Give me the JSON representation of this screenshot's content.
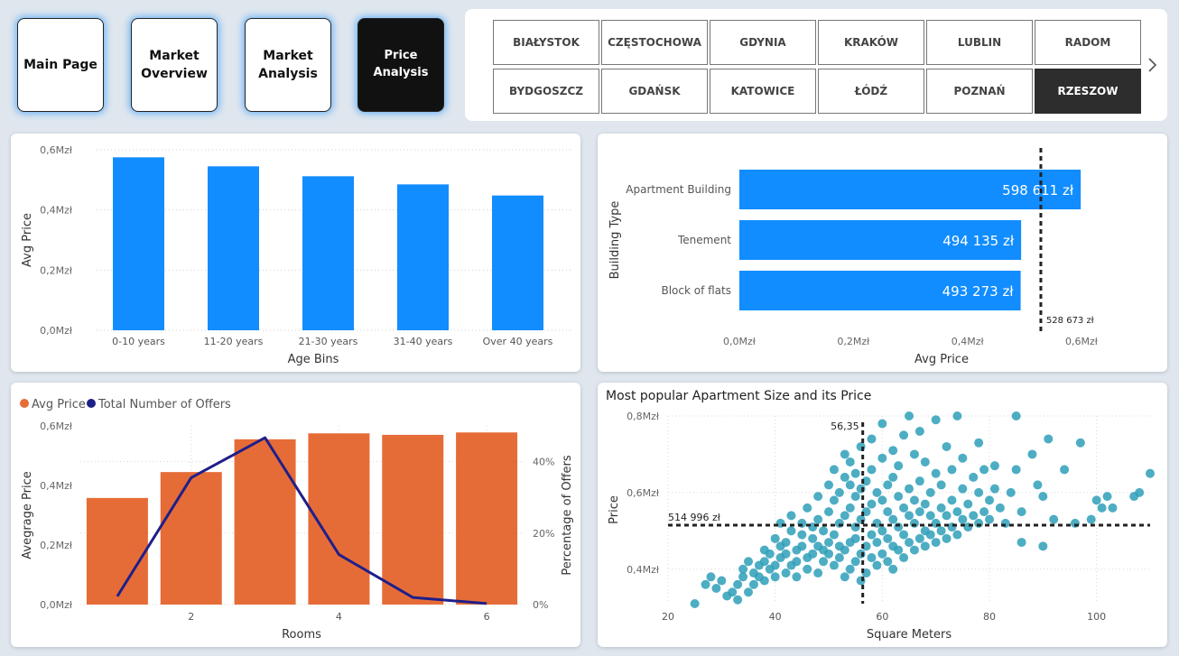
{
  "nav": {
    "buttons": [
      {
        "label": "Main Page"
      },
      {
        "label": "Market\nOverview"
      },
      {
        "label": "Market\nAnalysis"
      },
      {
        "label": "Price Analysis"
      }
    ]
  },
  "cities": {
    "row1": [
      "BIAŁYSTOK",
      "CZĘSTOCHOWA",
      "GDYNIA",
      "KRAKÓW",
      "LUBLIN",
      "RADOM"
    ],
    "row2": [
      "BYDGOSZCZ",
      "GDAŃSK",
      "KATOWICE",
      "ŁÓDŹ",
      "POZNAŃ",
      "RZESZOW"
    ],
    "selected": "RZESZOW"
  },
  "chart_data": [
    {
      "type": "bar",
      "categories": [
        "0-10 years",
        "11-20 years",
        "21-30 years",
        "31-40 years",
        "Over 40 years"
      ],
      "values": [
        0.575,
        0.545,
        0.512,
        0.485,
        0.448
      ],
      "ylim": [
        0,
        0.6
      ],
      "yticks": [
        "0,0Mzł",
        "0,2Mzł",
        "0,4Mzł",
        "0,6Mzł"
      ],
      "xlabel": "Age Bins",
      "ylabel": "Avg Price",
      "color": "#118dff",
      "grid": true
    },
    {
      "type": "bar",
      "orientation": "horizontal",
      "categories": [
        "Apartment Building",
        "Tenement",
        "Block of flats"
      ],
      "values": [
        598611,
        494135,
        493273
      ],
      "value_labels": [
        "598 611 zł",
        "494 135 zł",
        "493 273 zł"
      ],
      "reference_line": {
        "value": 528673,
        "label": "528 673 zł"
      },
      "xlim": [
        0,
        600000
      ],
      "xticks": [
        "0,0Mzł",
        "0,2Mzł",
        "0,4Mzł",
        "0,6Mzł"
      ],
      "xlabel": "Avg Price",
      "ylabel": "Building Type",
      "color": "#118dff"
    },
    {
      "type": "bar",
      "combo": true,
      "legend": [
        {
          "name": "Avg Price",
          "color": "#e66c37"
        },
        {
          "name": "Total Number of Offers",
          "color": "#1f1f8a"
        }
      ],
      "x": [
        1,
        2,
        3,
        4,
        5,
        6
      ],
      "xticks": [
        "2",
        "4",
        "6"
      ],
      "series": [
        {
          "name": "Avg Price",
          "type": "bar",
          "values": [
            0.358,
            0.445,
            0.555,
            0.575,
            0.57,
            0.578
          ],
          "axis": "left"
        },
        {
          "name": "Total Number of Offers",
          "type": "line",
          "values": [
            2.3,
            35.5,
            46.7,
            14,
            2,
            0.3
          ],
          "axis": "right"
        }
      ],
      "ylim": [
        0,
        0.6
      ],
      "yticks": [
        "0,0Mzł",
        "0,2Mzł",
        "0,4Mzł",
        "0,6Mzł"
      ],
      "y2lim": [
        0,
        50
      ],
      "y2ticks": [
        "0%",
        "20%",
        "40%"
      ],
      "xlabel": "Rooms",
      "ylabel": "Avegrage Price",
      "y2label": "Percentage of Offers"
    },
    {
      "type": "scatter",
      "title": "Most popular Apartment Size and its Price",
      "xlabel": "Square Meters",
      "ylabel": "Price",
      "xlim": [
        20,
        110
      ],
      "ylim": [
        0.31,
        0.8
      ],
      "xticks": [
        "20",
        "40",
        "60",
        "80",
        "100"
      ],
      "yticks": [
        "0,4Mzł",
        "0,6Mzł",
        "0,8Mzł"
      ],
      "color": "#2e9fb8",
      "reference_lines": {
        "x": {
          "value": 56.35,
          "label": "56,35"
        },
        "y": {
          "value": 0.515,
          "label": "514 996 zł"
        }
      },
      "points": [
        [
          25,
          0.31
        ],
        [
          27,
          0.36
        ],
        [
          28,
          0.38
        ],
        [
          29,
          0.35
        ],
        [
          30,
          0.37
        ],
        [
          31,
          0.33
        ],
        [
          32,
          0.34
        ],
        [
          33,
          0.36
        ],
        [
          33,
          0.32
        ],
        [
          34,
          0.38
        ],
        [
          34,
          0.4
        ],
        [
          35,
          0.34
        ],
        [
          35,
          0.42
        ],
        [
          36,
          0.39
        ],
        [
          36,
          0.36
        ],
        [
          37,
          0.41
        ],
        [
          37,
          0.38
        ],
        [
          38,
          0.42
        ],
        [
          38,
          0.45
        ],
        [
          38,
          0.37
        ],
        [
          39,
          0.4
        ],
        [
          39,
          0.44
        ],
        [
          40,
          0.38
        ],
        [
          40,
          0.48
        ],
        [
          40,
          0.41
        ],
        [
          41,
          0.43
        ],
        [
          41,
          0.46
        ],
        [
          41,
          0.52
        ],
        [
          42,
          0.39
        ],
        [
          42,
          0.44
        ],
        [
          42,
          0.47
        ],
        [
          43,
          0.41
        ],
        [
          43,
          0.5
        ],
        [
          43,
          0.54
        ],
        [
          44,
          0.42
        ],
        [
          44,
          0.45
        ],
        [
          44,
          0.38
        ],
        [
          45,
          0.46
        ],
        [
          45,
          0.49
        ],
        [
          45,
          0.52
        ],
        [
          46,
          0.4
        ],
        [
          46,
          0.43
        ],
        [
          46,
          0.56
        ],
        [
          47,
          0.44
        ],
        [
          47,
          0.48
        ],
        [
          47,
          0.51
        ],
        [
          48,
          0.39
        ],
        [
          48,
          0.46
        ],
        [
          48,
          0.53
        ],
        [
          48,
          0.59
        ],
        [
          49,
          0.42
        ],
        [
          49,
          0.45
        ],
        [
          49,
          0.5
        ],
        [
          50,
          0.44
        ],
        [
          50,
          0.47
        ],
        [
          50,
          0.55
        ],
        [
          50,
          0.62
        ],
        [
          51,
          0.41
        ],
        [
          51,
          0.49
        ],
        [
          51,
          0.58
        ],
        [
          51,
          0.66
        ],
        [
          52,
          0.43
        ],
        [
          52,
          0.46
        ],
        [
          52,
          0.52
        ],
        [
          52,
          0.6
        ],
        [
          53,
          0.38
        ],
        [
          53,
          0.45
        ],
        [
          53,
          0.54
        ],
        [
          53,
          0.64
        ],
        [
          53,
          0.7
        ],
        [
          54,
          0.4
        ],
        [
          54,
          0.47
        ],
        [
          54,
          0.56
        ],
        [
          54,
          0.62
        ],
        [
          54,
          0.68
        ],
        [
          55,
          0.42
        ],
        [
          55,
          0.48
        ],
        [
          55,
          0.51
        ],
        [
          55,
          0.59
        ],
        [
          55,
          0.65
        ],
        [
          56,
          0.37
        ],
        [
          56,
          0.44
        ],
        [
          56,
          0.53
        ],
        [
          56,
          0.61
        ],
        [
          56,
          0.72
        ],
        [
          57,
          0.39
        ],
        [
          57,
          0.46
        ],
        [
          57,
          0.55
        ],
        [
          57,
          0.63
        ],
        [
          58,
          0.43
        ],
        [
          58,
          0.49
        ],
        [
          58,
          0.57
        ],
        [
          58,
          0.66
        ],
        [
          58,
          0.74
        ],
        [
          59,
          0.41
        ],
        [
          59,
          0.47
        ],
        [
          59,
          0.52
        ],
        [
          59,
          0.6
        ],
        [
          60,
          0.44
        ],
        [
          60,
          0.5
        ],
        [
          60,
          0.58
        ],
        [
          60,
          0.69
        ],
        [
          60,
          0.78
        ],
        [
          61,
          0.42
        ],
        [
          61,
          0.48
        ],
        [
          61,
          0.55
        ],
        [
          61,
          0.62
        ],
        [
          62,
          0.4
        ],
        [
          62,
          0.46
        ],
        [
          62,
          0.53
        ],
        [
          62,
          0.64
        ],
        [
          62,
          0.71
        ],
        [
          63,
          0.45
        ],
        [
          63,
          0.51
        ],
        [
          63,
          0.59
        ],
        [
          63,
          0.67
        ],
        [
          64,
          0.43
        ],
        [
          64,
          0.49
        ],
        [
          64,
          0.56
        ],
        [
          64,
          0.75
        ],
        [
          65,
          0.47
        ],
        [
          65,
          0.54
        ],
        [
          65,
          0.61
        ],
        [
          65,
          0.8
        ],
        [
          66,
          0.45
        ],
        [
          66,
          0.52
        ],
        [
          66,
          0.58
        ],
        [
          66,
          0.7
        ],
        [
          67,
          0.48
        ],
        [
          67,
          0.55
        ],
        [
          67,
          0.63
        ],
        [
          67,
          0.76
        ],
        [
          68,
          0.46
        ],
        [
          68,
          0.5
        ],
        [
          68,
          0.57
        ],
        [
          68,
          0.68
        ],
        [
          69,
          0.49
        ],
        [
          69,
          0.54
        ],
        [
          69,
          0.6
        ],
        [
          70,
          0.47
        ],
        [
          70,
          0.52
        ],
        [
          70,
          0.65
        ],
        [
          70,
          0.79
        ],
        [
          71,
          0.5
        ],
        [
          71,
          0.56
        ],
        [
          71,
          0.62
        ],
        [
          72,
          0.48
        ],
        [
          72,
          0.54
        ],
        [
          72,
          0.72
        ],
        [
          73,
          0.51
        ],
        [
          73,
          0.58
        ],
        [
          73,
          0.66
        ],
        [
          74,
          0.49
        ],
        [
          74,
          0.55
        ],
        [
          74,
          0.8
        ],
        [
          75,
          0.53
        ],
        [
          75,
          0.61
        ],
        [
          75,
          0.69
        ],
        [
          76,
          0.51
        ],
        [
          76,
          0.57
        ],
        [
          77,
          0.54
        ],
        [
          77,
          0.64
        ],
        [
          78,
          0.52
        ],
        [
          78,
          0.6
        ],
        [
          78,
          0.73
        ],
        [
          79,
          0.55
        ],
        [
          79,
          0.66
        ],
        [
          80,
          0.53
        ],
        [
          80,
          0.58
        ],
        [
          81,
          0.61
        ],
        [
          81,
          0.67
        ],
        [
          82,
          0.56
        ],
        [
          83,
          0.52
        ],
        [
          84,
          0.6
        ],
        [
          85,
          0.66
        ],
        [
          85,
          0.8
        ],
        [
          86,
          0.47
        ],
        [
          86,
          0.55
        ],
        [
          88,
          0.7
        ],
        [
          89,
          0.62
        ],
        [
          90,
          0.59
        ],
        [
          90,
          0.46
        ],
        [
          91,
          0.74
        ],
        [
          92,
          0.53
        ],
        [
          94,
          0.66
        ],
        [
          96,
          0.52
        ],
        [
          97,
          0.73
        ],
        [
          99,
          0.53
        ],
        [
          100,
          0.58
        ],
        [
          101,
          0.56
        ],
        [
          102,
          0.59
        ],
        [
          103,
          0.56
        ],
        [
          107,
          0.59
        ],
        [
          108,
          0.6
        ],
        [
          110,
          0.65
        ]
      ]
    }
  ]
}
